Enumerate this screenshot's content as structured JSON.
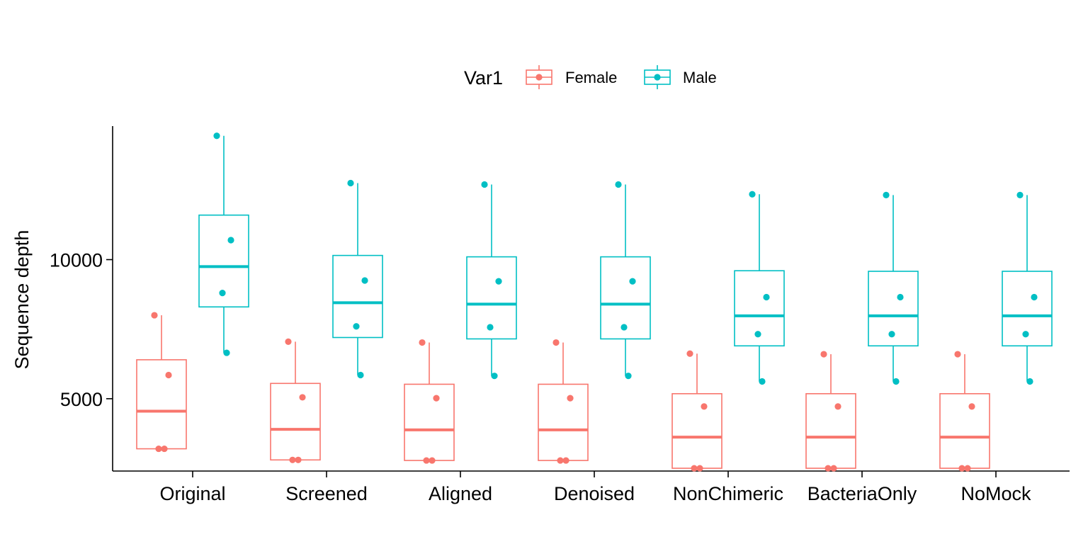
{
  "chart_data": {
    "type": "boxplot",
    "xlabel": "",
    "ylabel": "Sequence depth",
    "ylim": [
      2400,
      14800
    ],
    "yticks": [
      5000,
      10000
    ],
    "grid": false,
    "legend": {
      "title": "Var1",
      "placement": "top",
      "entries": [
        "Female",
        "Male"
      ]
    },
    "categories": [
      "Original",
      "Screened",
      "Aligned",
      "Denoised",
      "NonChimeric",
      "BacteriaOnly",
      "NoMock"
    ],
    "series": [
      {
        "name": "Female",
        "color": "#F8766D",
        "boxes": [
          {
            "min": 3200,
            "q1": 3200,
            "median": 4550,
            "q3": 6400,
            "max": 8000,
            "points": [
              8000,
              5850,
              3200,
              3200
            ]
          },
          {
            "min": 2800,
            "q1": 2800,
            "median": 3900,
            "q3": 5550,
            "max": 7050,
            "points": [
              7050,
              5050,
              2800,
              2800
            ]
          },
          {
            "min": 2780,
            "q1": 2780,
            "median": 3880,
            "q3": 5520,
            "max": 7020,
            "points": [
              7020,
              5020,
              2780,
              2780
            ]
          },
          {
            "min": 2780,
            "q1": 2780,
            "median": 3880,
            "q3": 5520,
            "max": 7020,
            "points": [
              7020,
              5020,
              2780,
              2780
            ]
          },
          {
            "min": 2500,
            "q1": 2500,
            "median": 3620,
            "q3": 5180,
            "max": 6620,
            "points": [
              6620,
              4720,
              2500,
              2500
            ]
          },
          {
            "min": 2500,
            "q1": 2500,
            "median": 3620,
            "q3": 5180,
            "max": 6600,
            "points": [
              6600,
              4720,
              2500,
              2500
            ]
          },
          {
            "min": 2500,
            "q1": 2500,
            "median": 3620,
            "q3": 5180,
            "max": 6600,
            "points": [
              6600,
              4720,
              2500,
              2500
            ]
          }
        ]
      },
      {
        "name": "Male",
        "color": "#00BFC4",
        "boxes": [
          {
            "min": 6650,
            "q1": 8300,
            "median": 9750,
            "q3": 11600,
            "max": 14450,
            "points": [
              14450,
              10700,
              8800,
              6650
            ]
          },
          {
            "min": 5850,
            "q1": 7200,
            "median": 8450,
            "q3": 10150,
            "max": 12750,
            "points": [
              12750,
              9250,
              7600,
              5850
            ]
          },
          {
            "min": 5820,
            "q1": 7150,
            "median": 8400,
            "q3": 10100,
            "max": 12700,
            "points": [
              12700,
              9220,
              7570,
              5820
            ]
          },
          {
            "min": 5820,
            "q1": 7150,
            "median": 8400,
            "q3": 10100,
            "max": 12700,
            "points": [
              12700,
              9220,
              7570,
              5820
            ]
          },
          {
            "min": 5620,
            "q1": 6900,
            "median": 7980,
            "q3": 9600,
            "max": 12350,
            "points": [
              12350,
              8650,
              7320,
              5620
            ]
          },
          {
            "min": 5620,
            "q1": 6900,
            "median": 7980,
            "q3": 9580,
            "max": 12320,
            "points": [
              12320,
              8650,
              7320,
              5620
            ]
          },
          {
            "min": 5620,
            "q1": 6900,
            "median": 7980,
            "q3": 9580,
            "max": 12320,
            "points": [
              12320,
              8650,
              7320,
              5620
            ]
          }
        ]
      }
    ]
  }
}
